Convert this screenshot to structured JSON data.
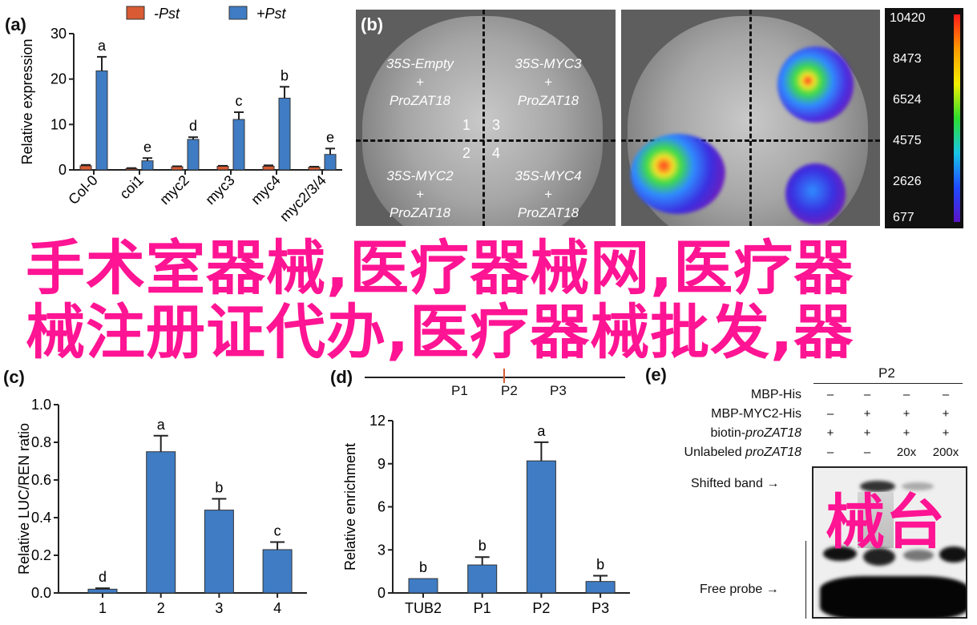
{
  "panels": {
    "a": "(a)",
    "b": "(b)",
    "c": "(c)",
    "d": "(d)",
    "e": "(e)"
  },
  "colors": {
    "minus_pst": "#d95b33",
    "plus_pst": "#3f7cc4",
    "bar": "#3f7cc4",
    "overlay": "#ff1493"
  },
  "chart_data": [
    {
      "id": "a",
      "type": "bar",
      "title": "",
      "ylabel": "Relative expression",
      "ylim": [
        0,
        30
      ],
      "yticks": [
        0,
        10,
        20,
        30
      ],
      "categories": [
        "Col-0",
        "coi1",
        "myc2",
        "myc3",
        "myc4",
        "myc2/3/4"
      ],
      "legend": {
        "placement": "top",
        "entries": [
          "-Pst",
          "+Pst"
        ]
      },
      "series": [
        {
          "name": "-Pst",
          "values": [
            0.9,
            0.3,
            0.7,
            0.8,
            0.8,
            0.6
          ],
          "errors": [
            0.2,
            0.1,
            0.1,
            0.1,
            0.2,
            0.1
          ]
        },
        {
          "name": "+Pst",
          "values": [
            21.8,
            2.0,
            6.7,
            11.1,
            15.8,
            3.4
          ],
          "errors": [
            3.1,
            0.6,
            0.5,
            1.6,
            2.5,
            1.3
          ],
          "letters": [
            "a",
            "e",
            "d",
            "c",
            "b",
            "e"
          ]
        }
      ]
    },
    {
      "id": "c",
      "type": "bar",
      "ylabel": "Relative LUC/REN ratio",
      "ylim": [
        0,
        1.0
      ],
      "yticks": [
        0.0,
        0.2,
        0.4,
        0.6,
        0.8,
        1.0
      ],
      "ytick_labels": [
        "0.0",
        "0.2",
        "0.4",
        "0.6",
        "0.8",
        "1.0"
      ],
      "categories": [
        "1",
        "2",
        "3",
        "4"
      ],
      "series": [
        {
          "name": "LUC/REN",
          "values": [
            0.02,
            0.75,
            0.44,
            0.23
          ],
          "errors": [
            0.005,
            0.085,
            0.06,
            0.04
          ],
          "letters": [
            "d",
            "a",
            "b",
            "c"
          ]
        }
      ]
    },
    {
      "id": "d",
      "type": "bar",
      "ylabel": "Relative enrichment",
      "ylim": [
        0,
        12
      ],
      "yticks": [
        0,
        3,
        6,
        9,
        12
      ],
      "categories": [
        "TUB2",
        "P1",
        "P2",
        "P3"
      ],
      "series": [
        {
          "name": "enrichment",
          "values": [
            1.0,
            1.95,
            9.2,
            0.8
          ],
          "errors": [
            0,
            0.55,
            1.3,
            0.4
          ],
          "letters": [
            "b",
            "b",
            "a",
            "b"
          ]
        }
      ]
    }
  ],
  "panel_b": {
    "quadrants": [
      {
        "line1": "35S-Empty",
        "line2": "+",
        "line3": "ProZAT18",
        "num": "1"
      },
      {
        "line1": "35S-MYC3",
        "line2": "+",
        "line3": "ProZAT18",
        "num": "3"
      },
      {
        "line1": "35S-MYC2",
        "line2": "+",
        "line3": "ProZAT18",
        "num": "2"
      },
      {
        "line1": "35S-MYC4",
        "line2": "+",
        "line3": "ProZAT18",
        "num": "4"
      }
    ],
    "colorbar": [
      "10420",
      "8473",
      "6524",
      "4575",
      "2626",
      "677"
    ]
  },
  "panel_d_diagram": {
    "labels": [
      "P1",
      "P2",
      "P3"
    ]
  },
  "panel_e": {
    "header": "P2",
    "rows": [
      {
        "label": "MBP-His",
        "cells": [
          "–",
          "–",
          "–",
          "–"
        ]
      },
      {
        "label": "MBP-MYC2-His",
        "cells": [
          "–",
          "+",
          "+",
          "+"
        ]
      },
      {
        "label_plain": "biotin-",
        "label_italic": "proZAT18",
        "cells": [
          "+",
          "+",
          "+",
          "+"
        ]
      },
      {
        "label_plain": "Unlabeled ",
        "label_italic": "proZAT18",
        "cells": [
          "–",
          "–",
          "20x",
          "200x"
        ]
      }
    ],
    "shifted_band": "Shifted band",
    "free_probe": "Free probe",
    "arrow": "→"
  },
  "overlay": {
    "line1": "手术室器械,医疗器械网,医疗器",
    "line2": "械注册证代办,医疗器械批发,器",
    "line3": "械台"
  }
}
